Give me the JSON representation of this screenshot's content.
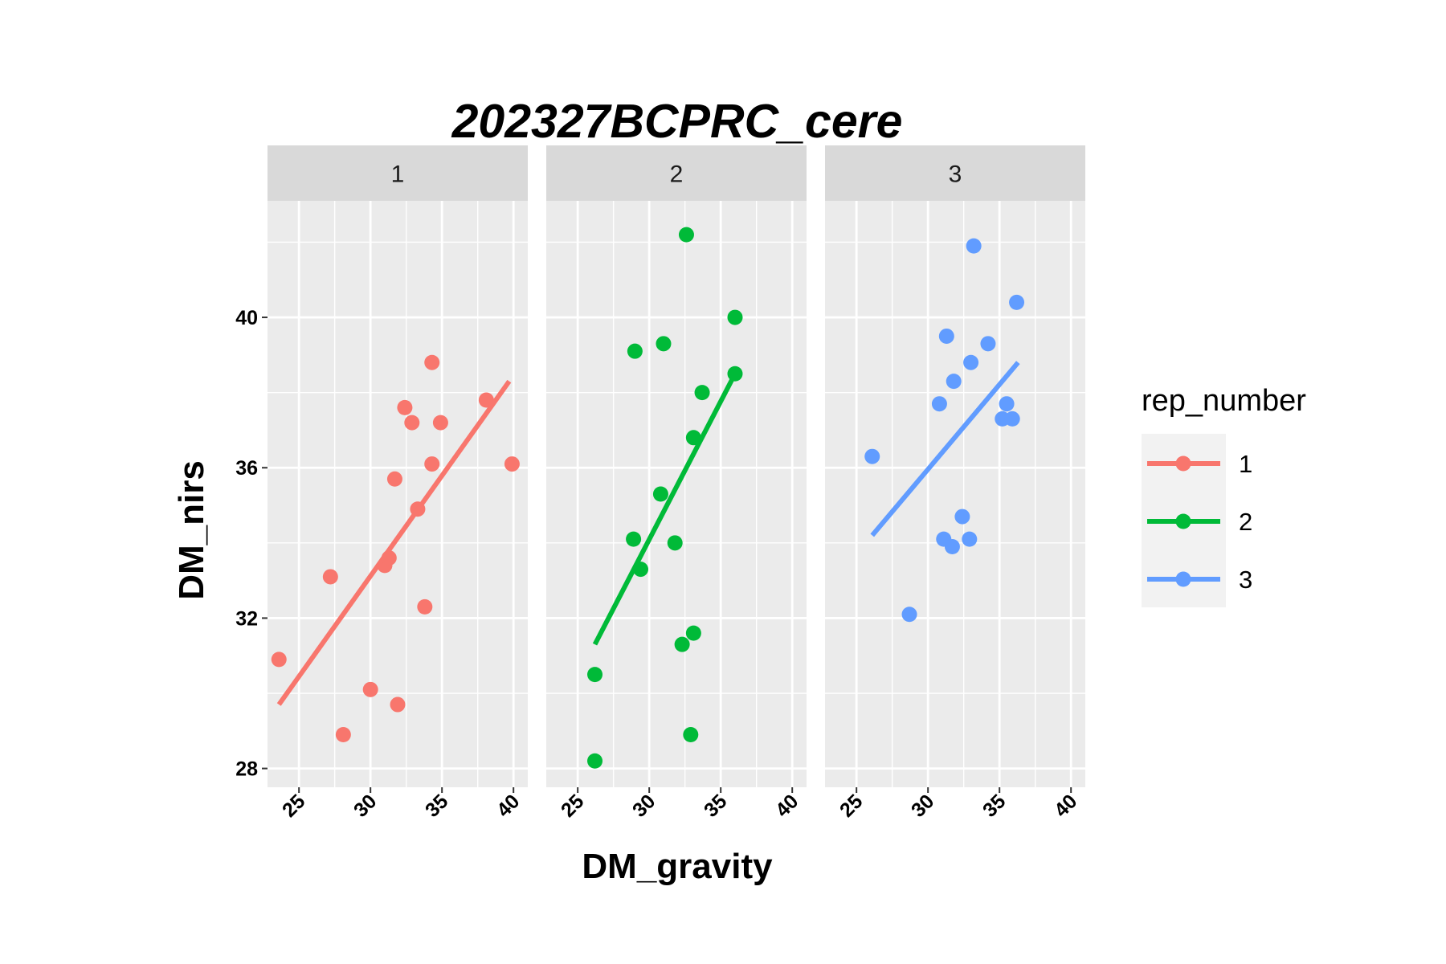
{
  "chart_data": {
    "type": "scatter",
    "title": "202327BCPRC_cere",
    "xlabel": "DM_gravity",
    "ylabel": "DM_nirs",
    "xlim": [
      22.8,
      41.0
    ],
    "ylim": [
      27.5,
      43.1
    ],
    "x_ticks": [
      25,
      30,
      35,
      40
    ],
    "y_ticks": [
      28,
      32,
      36,
      40
    ],
    "grid": true,
    "legend": {
      "title": "rep_number",
      "placement": "right",
      "entries": [
        "1",
        "2",
        "3"
      ]
    },
    "panels": [
      {
        "label": "1",
        "color": "#F8766D",
        "trend": [
          [
            23.6,
            29.7
          ],
          [
            39.7,
            38.3
          ]
        ],
        "points": [
          {
            "x": 23.6,
            "y": 30.9
          },
          {
            "x": 27.2,
            "y": 33.1
          },
          {
            "x": 28.1,
            "y": 28.9
          },
          {
            "x": 30.0,
            "y": 30.1
          },
          {
            "x": 31.0,
            "y": 33.4
          },
          {
            "x": 31.3,
            "y": 33.6
          },
          {
            "x": 31.7,
            "y": 35.7
          },
          {
            "x": 31.9,
            "y": 29.7
          },
          {
            "x": 32.4,
            "y": 37.6
          },
          {
            "x": 32.9,
            "y": 37.2
          },
          {
            "x": 33.3,
            "y": 34.9
          },
          {
            "x": 33.8,
            "y": 32.3
          },
          {
            "x": 34.3,
            "y": 38.8
          },
          {
            "x": 34.3,
            "y": 36.1
          },
          {
            "x": 34.9,
            "y": 37.2
          },
          {
            "x": 38.1,
            "y": 37.8
          },
          {
            "x": 39.9,
            "y": 36.1
          }
        ]
      },
      {
        "label": "2",
        "color": "#00BA38",
        "trend": [
          [
            26.2,
            31.3
          ],
          [
            36.0,
            38.5
          ]
        ],
        "points": [
          {
            "x": 26.2,
            "y": 28.2
          },
          {
            "x": 26.2,
            "y": 30.5
          },
          {
            "x": 28.9,
            "y": 34.1
          },
          {
            "x": 29.0,
            "y": 39.1
          },
          {
            "x": 29.4,
            "y": 33.3
          },
          {
            "x": 30.8,
            "y": 35.3
          },
          {
            "x": 31.0,
            "y": 39.3
          },
          {
            "x": 31.8,
            "y": 34.0
          },
          {
            "x": 32.3,
            "y": 31.3
          },
          {
            "x": 32.6,
            "y": 42.2
          },
          {
            "x": 32.9,
            "y": 28.9
          },
          {
            "x": 33.1,
            "y": 31.6
          },
          {
            "x": 33.1,
            "y": 36.8
          },
          {
            "x": 33.7,
            "y": 38.0
          },
          {
            "x": 36.0,
            "y": 40.0
          },
          {
            "x": 36.0,
            "y": 38.5
          }
        ]
      },
      {
        "label": "3",
        "color": "#619CFF",
        "trend": [
          [
            26.1,
            34.2
          ],
          [
            36.3,
            38.8
          ]
        ],
        "points": [
          {
            "x": 26.1,
            "y": 36.3
          },
          {
            "x": 28.7,
            "y": 32.1
          },
          {
            "x": 30.8,
            "y": 37.7
          },
          {
            "x": 31.1,
            "y": 34.1
          },
          {
            "x": 31.3,
            "y": 39.5
          },
          {
            "x": 31.7,
            "y": 33.9
          },
          {
            "x": 31.8,
            "y": 38.3
          },
          {
            "x": 32.4,
            "y": 34.7
          },
          {
            "x": 32.9,
            "y": 34.1
          },
          {
            "x": 33.0,
            "y": 38.8
          },
          {
            "x": 33.2,
            "y": 41.9
          },
          {
            "x": 34.2,
            "y": 39.3
          },
          {
            "x": 35.2,
            "y": 37.3
          },
          {
            "x": 35.5,
            "y": 37.7
          },
          {
            "x": 35.9,
            "y": 37.3
          },
          {
            "x": 36.2,
            "y": 40.4
          }
        ]
      }
    ]
  }
}
